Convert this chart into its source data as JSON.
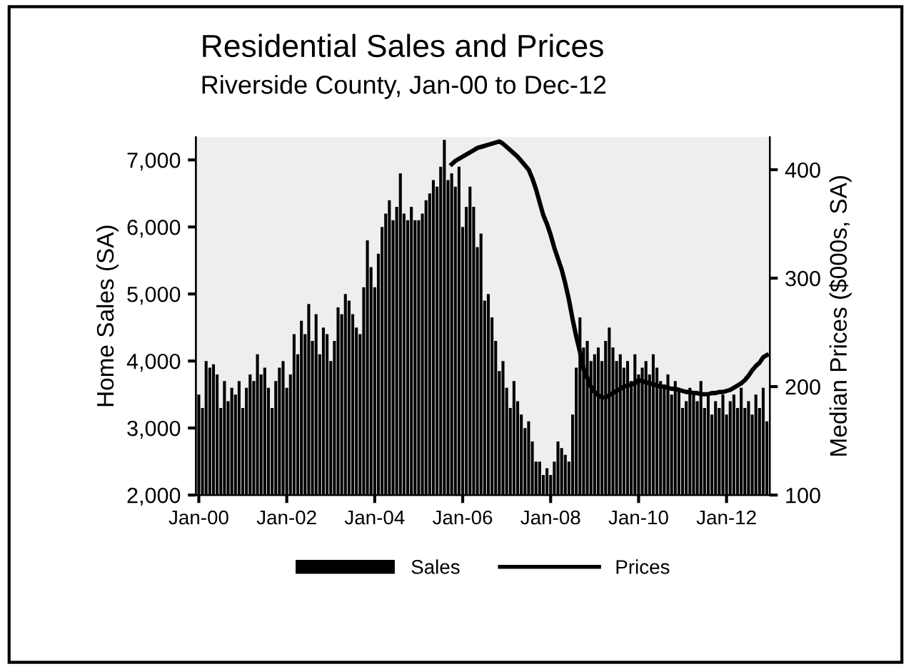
{
  "chart_data": {
    "type": "bar",
    "title": "Residential Sales and Prices",
    "subtitle": "Riverside County, Jan-00 to Dec-12",
    "ylabel": "Home Sales (SA)",
    "y2label": "Median Prices ($000s, SA)",
    "categories": [
      "Jan-00",
      null,
      null,
      null,
      null,
      null,
      null,
      null,
      null,
      null,
      null,
      null,
      null,
      null,
      null,
      null,
      null,
      null,
      null,
      null,
      null,
      null,
      null,
      null,
      "Jan-02",
      null,
      null,
      null,
      null,
      null,
      null,
      null,
      null,
      null,
      null,
      null,
      null,
      null,
      null,
      null,
      null,
      null,
      null,
      null,
      null,
      null,
      null,
      null,
      "Jan-04",
      null,
      null,
      null,
      null,
      null,
      null,
      null,
      null,
      null,
      null,
      null,
      null,
      null,
      null,
      null,
      null,
      null,
      null,
      null,
      null,
      null,
      null,
      null,
      "Jan-06",
      null,
      null,
      null,
      null,
      null,
      null,
      null,
      null,
      null,
      null,
      null,
      null,
      null,
      null,
      null,
      null,
      null,
      null,
      null,
      null,
      null,
      null,
      null,
      "Jan-08",
      null,
      null,
      null,
      null,
      null,
      null,
      null,
      null,
      null,
      null,
      null,
      null,
      null,
      null,
      null,
      null,
      null,
      null,
      null,
      null,
      null,
      null,
      null,
      "Jan-10",
      null,
      null,
      null,
      null,
      null,
      null,
      null,
      null,
      null,
      null,
      null,
      null,
      null,
      null,
      null,
      null,
      null,
      null,
      null,
      null,
      null,
      null,
      null,
      "Jan-12",
      null,
      null,
      null,
      null,
      null,
      null,
      null,
      null,
      null,
      null,
      null
    ],
    "series": [
      {
        "name": "Sales",
        "color": "#000000",
        "values": [
          3500,
          3300,
          4000,
          3900,
          3950,
          3800,
          3300,
          3700,
          3400,
          3600,
          3500,
          3700,
          3300,
          3600,
          3800,
          3700,
          4100,
          3800,
          3900,
          3600,
          3300,
          3700,
          3900,
          4000,
          3600,
          3800,
          4400,
          4100,
          4600,
          4400,
          4850,
          4300,
          4700,
          4100,
          4500,
          4400,
          4000,
          4300,
          4800,
          4700,
          5000,
          4900,
          4700,
          4500,
          4400,
          5100,
          5800,
          5400,
          5100,
          5600,
          6000,
          6200,
          6400,
          6100,
          6300,
          6800,
          6200,
          6100,
          6300,
          6100,
          6100,
          6200,
          6400,
          6500,
          6700,
          6600,
          6900,
          7300,
          6700,
          6800,
          6600,
          6900,
          6000,
          6300,
          6600,
          6300,
          5700,
          5900,
          4900,
          5000,
          4650,
          4300,
          3850,
          4000,
          3600,
          3300,
          3700,
          3400,
          3200,
          3000,
          3100,
          2800,
          2500,
          2500,
          2300,
          2400,
          2300,
          2500,
          2800,
          2700,
          2600,
          2500,
          3200,
          3900,
          4650,
          4200,
          4300,
          4000,
          4100,
          4200,
          4000,
          4300,
          4500,
          4200,
          4000,
          4100,
          3900,
          4000,
          3700,
          4100,
          3800,
          3900,
          4000,
          3800,
          4100,
          3900,
          3700,
          3600,
          3800,
          3500,
          3700,
          3600,
          3300,
          3400,
          3600,
          3500,
          3400,
          3700,
          3300,
          3500,
          3200,
          3400,
          3300,
          3500,
          3200,
          3400,
          3500,
          3300,
          3600,
          3300,
          3400,
          3200,
          3500,
          3300,
          3600,
          3100
        ]
      },
      {
        "name": "Prices",
        "type": "line",
        "axis": "y2",
        "color": "#000000",
        "values": [
          null,
          null,
          null,
          null,
          null,
          null,
          null,
          null,
          null,
          null,
          null,
          null,
          null,
          null,
          null,
          null,
          null,
          null,
          null,
          null,
          null,
          null,
          null,
          null,
          null,
          null,
          null,
          null,
          null,
          null,
          null,
          null,
          null,
          null,
          null,
          null,
          null,
          null,
          null,
          null,
          null,
          null,
          null,
          null,
          null,
          null,
          null,
          null,
          null,
          null,
          null,
          null,
          null,
          null,
          null,
          null,
          null,
          null,
          null,
          null,
          null,
          null,
          null,
          null,
          null,
          null,
          null,
          null,
          null,
          405,
          408,
          410,
          412,
          414,
          416,
          418,
          420,
          421,
          422,
          423,
          424,
          425,
          426,
          424,
          421,
          418,
          415,
          412,
          408,
          404,
          400,
          392,
          382,
          370,
          358,
          350,
          340,
          328,
          318,
          308,
          295,
          280,
          262,
          246,
          232,
          216,
          208,
          200,
          195,
          192,
          190,
          190,
          192,
          194,
          196,
          198,
          200,
          201,
          202,
          203,
          206,
          205,
          204,
          203,
          202,
          201,
          200,
          200,
          199,
          198,
          198,
          197,
          196,
          195,
          195,
          194,
          194,
          193,
          193,
          193,
          194,
          194,
          195,
          195,
          196,
          197,
          199,
          201,
          203,
          206,
          210,
          215,
          219,
          222,
          227,
          229
        ]
      }
    ],
    "ylim": [
      2000,
      7340
    ],
    "yticks": [
      {
        "value": 2000,
        "label": "2,000"
      },
      {
        "value": 3000,
        "label": "3,000"
      },
      {
        "value": 4000,
        "label": "4,000"
      },
      {
        "value": 5000,
        "label": "5,000"
      },
      {
        "value": 6000,
        "label": "6,000"
      },
      {
        "value": 7000,
        "label": "7,000"
      }
    ],
    "y2lim": [
      100,
      430
    ],
    "y2ticks": [
      100,
      200,
      300,
      400
    ],
    "legend": "bottom",
    "grid": false
  }
}
